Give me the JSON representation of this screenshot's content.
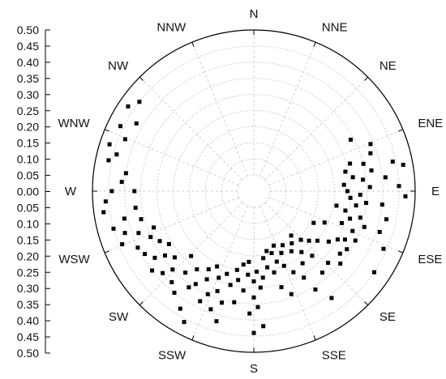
{
  "chart_data": {
    "type": "scatter",
    "coordinate_system": "polar",
    "radial_axis": {
      "range": [
        0,
        0.5
      ],
      "ticks": [
        "0.50",
        "0.45",
        "0.40",
        "0.35",
        "0.30",
        "0.25",
        "0.20",
        "0.15",
        "0.10",
        "0.05",
        "0.00",
        "0.05",
        "0.10",
        "0.15",
        "0.20",
        "0.25",
        "0.30",
        "0.35",
        "0.40",
        "0.45",
        "0.50"
      ]
    },
    "directions": [
      "N",
      "NNE",
      "NE",
      "ENE",
      "E",
      "ESE",
      "SE",
      "SSE",
      "S",
      "SSW",
      "SW",
      "WSW",
      "W",
      "WNW",
      "NW",
      "NNW"
    ],
    "grid": true,
    "marker_color": "#000000",
    "grid_color": "#cfcfcf",
    "points": [
      {
        "theta": 262,
        "r": 0.47
      },
      {
        "theta": 266,
        "r": 0.46
      },
      {
        "theta": 270,
        "r": 0.44
      },
      {
        "theta": 255,
        "r": 0.45
      },
      {
        "theta": 282,
        "r": 0.46
      },
      {
        "theta": 285,
        "r": 0.44
      },
      {
        "theta": 288,
        "r": 0.47
      },
      {
        "theta": 292,
        "r": 0.43
      },
      {
        "theta": 296,
        "r": 0.46
      },
      {
        "theta": 300,
        "r": 0.42
      },
      {
        "theta": 278,
        "r": 0.4
      },
      {
        "theta": 274,
        "r": 0.41
      },
      {
        "theta": 258,
        "r": 0.41
      },
      {
        "theta": 252,
        "r": 0.42
      },
      {
        "theta": 248,
        "r": 0.44
      },
      {
        "theta": 244,
        "r": 0.4
      },
      {
        "theta": 262,
        "r": 0.37
      },
      {
        "theta": 256,
        "r": 0.36
      },
      {
        "theta": 250,
        "r": 0.38
      },
      {
        "theta": 246,
        "r": 0.35
      },
      {
        "theta": 240,
        "r": 0.39
      },
      {
        "theta": 236,
        "r": 0.37
      },
      {
        "theta": 232,
        "r": 0.4
      },
      {
        "theta": 228,
        "r": 0.38
      },
      {
        "theta": 242,
        "r": 0.33
      },
      {
        "theta": 238,
        "r": 0.31
      },
      {
        "theta": 234,
        "r": 0.34
      },
      {
        "theta": 230,
        "r": 0.32
      },
      {
        "theta": 226,
        "r": 0.35
      },
      {
        "theta": 222,
        "r": 0.38
      },
      {
        "theta": 218,
        "r": 0.4
      },
      {
        "theta": 214,
        "r": 0.36
      },
      {
        "theta": 220,
        "r": 0.33
      },
      {
        "theta": 216,
        "r": 0.3
      },
      {
        "theta": 212,
        "r": 0.34
      },
      {
        "theta": 208,
        "r": 0.31
      },
      {
        "theta": 204,
        "r": 0.35
      },
      {
        "theta": 200,
        "r": 0.33
      },
      {
        "theta": 196,
        "r": 0.36
      },
      {
        "theta": 224,
        "r": 0.28
      },
      {
        "theta": 210,
        "r": 0.28
      },
      {
        "theta": 206,
        "r": 0.26
      },
      {
        "theta": 202,
        "r": 0.29
      },
      {
        "theta": 198,
        "r": 0.27
      },
      {
        "theta": 194,
        "r": 0.3
      },
      {
        "theta": 190,
        "r": 0.28
      },
      {
        "theta": 186,
        "r": 0.31
      },
      {
        "theta": 192,
        "r": 0.25
      },
      {
        "theta": 188,
        "r": 0.23
      },
      {
        "theta": 184,
        "r": 0.26
      },
      {
        "theta": 180,
        "r": 0.28
      },
      {
        "theta": 180,
        "r": 0.33
      },
      {
        "theta": 178,
        "r": 0.36
      },
      {
        "theta": 182,
        "r": 0.38
      },
      {
        "theta": 176,
        "r": 0.3
      },
      {
        "theta": 174,
        "r": 0.27
      },
      {
        "theta": 170,
        "r": 0.24
      },
      {
        "theta": 166,
        "r": 0.26
      },
      {
        "theta": 162,
        "r": 0.23
      },
      {
        "theta": 158,
        "r": 0.25
      },
      {
        "theta": 172,
        "r": 0.21
      },
      {
        "theta": 168,
        "r": 0.19
      },
      {
        "theta": 164,
        "r": 0.2
      },
      {
        "theta": 160,
        "r": 0.18
      },
      {
        "theta": 156,
        "r": 0.21
      },
      {
        "theta": 152,
        "r": 0.19
      },
      {
        "theta": 148,
        "r": 0.22
      },
      {
        "theta": 154,
        "r": 0.28
      },
      {
        "theta": 150,
        "r": 0.31
      },
      {
        "theta": 146,
        "r": 0.27
      },
      {
        "theta": 142,
        "r": 0.24
      },
      {
        "theta": 138,
        "r": 0.27
      },
      {
        "theta": 144,
        "r": 0.2
      },
      {
        "theta": 140,
        "r": 0.18
      },
      {
        "theta": 136,
        "r": 0.21
      },
      {
        "theta": 132,
        "r": 0.23
      },
      {
        "theta": 128,
        "r": 0.25
      },
      {
        "theta": 124,
        "r": 0.28
      },
      {
        "theta": 120,
        "r": 0.3
      },
      {
        "theta": 134,
        "r": 0.32
      },
      {
        "theta": 130,
        "r": 0.35
      },
      {
        "theta": 126,
        "r": 0.33
      },
      {
        "theta": 122,
        "r": 0.34
      },
      {
        "theta": 118,
        "r": 0.32
      },
      {
        "theta": 116,
        "r": 0.35
      },
      {
        "theta": 112,
        "r": 0.33
      },
      {
        "theta": 108,
        "r": 0.36
      },
      {
        "theta": 104,
        "r": 0.34
      },
      {
        "theta": 110,
        "r": 0.29
      },
      {
        "theta": 106,
        "r": 0.31
      },
      {
        "theta": 102,
        "r": 0.29
      },
      {
        "theta": 98,
        "r": 0.32
      },
      {
        "theta": 94,
        "r": 0.3
      },
      {
        "theta": 96,
        "r": 0.35
      },
      {
        "theta": 92,
        "r": 0.33
      },
      {
        "theta": 88,
        "r": 0.36
      },
      {
        "theta": 84,
        "r": 0.34
      },
      {
        "theta": 80,
        "r": 0.37
      },
      {
        "theta": 76,
        "r": 0.35
      },
      {
        "theta": 72,
        "r": 0.38
      },
      {
        "theta": 68,
        "r": 0.39
      },
      {
        "theta": 82,
        "r": 0.31
      },
      {
        "theta": 78,
        "r": 0.29
      },
      {
        "theta": 74,
        "r": 0.31
      },
      {
        "theta": 86,
        "r": 0.28
      },
      {
        "theta": 90,
        "r": 0.29
      },
      {
        "theta": 100,
        "r": 0.26
      },
      {
        "theta": 114,
        "r": 0.24
      },
      {
        "theta": 118,
        "r": 0.21
      },
      {
        "theta": 62,
        "r": 0.34
      },
      {
        "theta": 84,
        "r": 0.41
      },
      {
        "theta": 78,
        "r": 0.44
      },
      {
        "theta": 96,
        "r": 0.4
      },
      {
        "theta": 102,
        "r": 0.42
      },
      {
        "theta": 108,
        "r": 0.41
      },
      {
        "theta": 114,
        "r": 0.44
      },
      {
        "theta": 88,
        "r": 0.45
      },
      {
        "theta": 80,
        "r": 0.47
      },
      {
        "theta": 92,
        "r": 0.47
      },
      {
        "theta": 124,
        "r": 0.45
      },
      {
        "theta": 140,
        "r": 0.33
      },
      {
        "theta": 144,
        "r": 0.41
      },
      {
        "theta": 148,
        "r": 0.36
      },
      {
        "theta": 160,
        "r": 0.34
      },
      {
        "theta": 164,
        "r": 0.31
      },
      {
        "theta": 178,
        "r": 0.25
      },
      {
        "theta": 184,
        "r": 0.22
      },
      {
        "theta": 176,
        "r": 0.42
      },
      {
        "theta": 180,
        "r": 0.44
      },
      {
        "theta": 200,
        "r": 0.39
      },
      {
        "theta": 206,
        "r": 0.38
      },
      {
        "theta": 212,
        "r": 0.43
      },
      {
        "theta": 208,
        "r": 0.46
      },
      {
        "theta": 196,
        "r": 0.42
      },
      {
        "theta": 190,
        "r": 0.35
      },
      {
        "theta": 270,
        "r": 0.37
      },
      {
        "theta": 304,
        "r": 0.47
      },
      {
        "theta": 308,
        "r": 0.45
      },
      {
        "theta": 250,
        "r": 0.33
      }
    ]
  }
}
